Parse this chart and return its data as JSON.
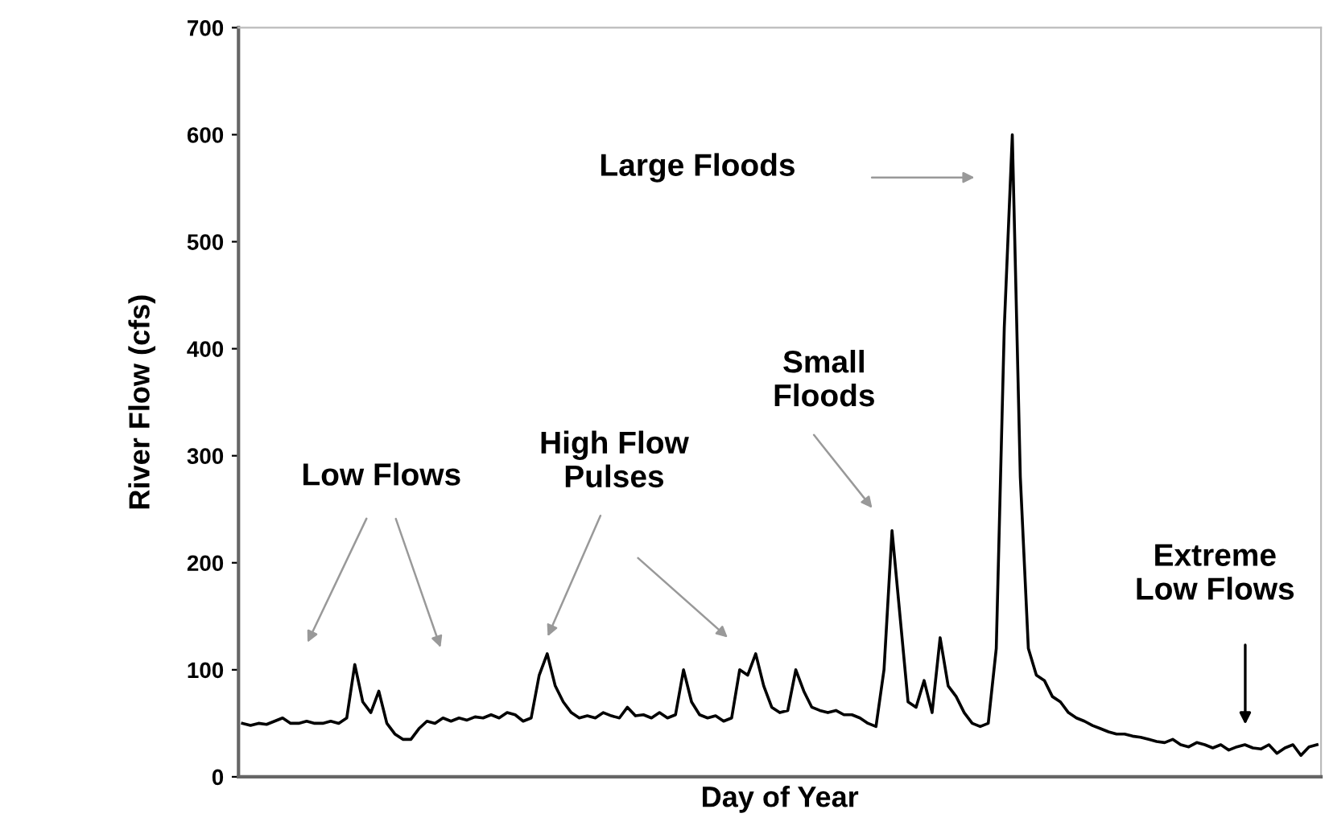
{
  "chart_data": {
    "type": "line",
    "xlabel": "Day of Year",
    "ylabel": "River Flow (cfs)",
    "categories": [
      null,
      null,
      null,
      null,
      null,
      null,
      null,
      null,
      null,
      null,
      null,
      null,
      null,
      null,
      null,
      null,
      null,
      null,
      null,
      null,
      null,
      null,
      null,
      null,
      null,
      null,
      null,
      null,
      null,
      null,
      null,
      null,
      null,
      null,
      null,
      null,
      null,
      null,
      null,
      null,
      null,
      null,
      null,
      null,
      null,
      null,
      null,
      null,
      null,
      null,
      null,
      null,
      null,
      null,
      null,
      null,
      null,
      null,
      null,
      null,
      null,
      null,
      null,
      null,
      null,
      null,
      null,
      null,
      null,
      null,
      null,
      null,
      null,
      null,
      null,
      null,
      null,
      null,
      null,
      null,
      null,
      null,
      null,
      null,
      null,
      null,
      null,
      null,
      null,
      null,
      null,
      null,
      null,
      null,
      null,
      null,
      null,
      null,
      null,
      null,
      null,
      null,
      null,
      null,
      null,
      null,
      null,
      null,
      null,
      null,
      null,
      null,
      null,
      null,
      null,
      null,
      null,
      null,
      null,
      null,
      null,
      null,
      null,
      null,
      null,
      null,
      null,
      null,
      null,
      null,
      null,
      null,
      null,
      null,
      null
    ],
    "series": [
      {
        "color": "#000000",
        "values": [
          50,
          48,
          50,
          49,
          52,
          55,
          50,
          50,
          52,
          50,
          50,
          52,
          50,
          55,
          105,
          70,
          60,
          80,
          50,
          40,
          35,
          35,
          45,
          52,
          50,
          55,
          52,
          55,
          53,
          56,
          55,
          58,
          55,
          60,
          58,
          52,
          55,
          95,
          115,
          85,
          70,
          60,
          55,
          57,
          55,
          60,
          57,
          55,
          65,
          57,
          58,
          55,
          60,
          55,
          58,
          100,
          70,
          58,
          55,
          57,
          52,
          55,
          100,
          95,
          115,
          85,
          65,
          60,
          62,
          100,
          80,
          65,
          62,
          60,
          62,
          58,
          58,
          55,
          50,
          47,
          100,
          230,
          150,
          70,
          65,
          90,
          60,
          130,
          85,
          75,
          60,
          50,
          47,
          50,
          120,
          420,
          600,
          280,
          120,
          95,
          90,
          75,
          70,
          60,
          55,
          52,
          48,
          45,
          42,
          40,
          40,
          38,
          37,
          35,
          33,
          32,
          35,
          30,
          28,
          32,
          30,
          27,
          30,
          25,
          28,
          30,
          27,
          26,
          30,
          22,
          27,
          30,
          20,
          28,
          30
        ]
      }
    ],
    "ylim": [
      0,
      700
    ],
    "yticks": [
      0,
      100,
      200,
      300,
      400,
      500,
      600,
      700
    ],
    "grid": false,
    "legend": false,
    "tick_labels": "y",
    "marker": "none",
    "line_style": "solid",
    "annotations": [
      "Low Flows",
      "High Flow\nPulses",
      "Small\nFloods",
      "Large Floods",
      "Extreme\nLow Flows"
    ]
  }
}
